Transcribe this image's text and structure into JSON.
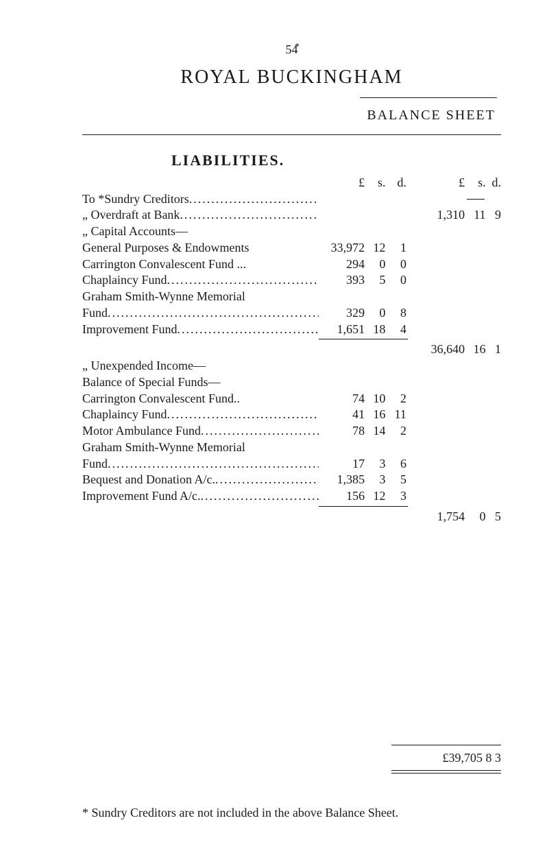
{
  "page": {
    "number": "54",
    "top_mark": "*",
    "title_main": "ROYAL    BUCKINGHAM",
    "subtitle": "BALANCE   SHEET",
    "section_heading": "LIABILITIES.",
    "header_left_L": "£",
    "header_left_s": "s.",
    "header_left_d": "d.",
    "header_right_L": "£",
    "header_right_s": "s.",
    "header_right_d": "d.",
    "footnote": "* Sundry Creditors are not included in the above Balance Sheet.",
    "grand_total": "£39,705  8   3"
  },
  "lines": {
    "sundry_creditors": "To *Sundry Creditors",
    "overdraft": "„  Overdraft at Bank",
    "overdraft_amt_L": "1,310",
    "overdraft_amt_s": "11",
    "overdraft_amt_d": "9",
    "capital_accounts": "„  Capital Accounts—",
    "gp": "General Purposes & Endowments",
    "gp_L": "33,972",
    "gp_s": "12",
    "gp_d": "1",
    "ccf": "Carrington Convalescent Fund ...",
    "ccf_L": "294",
    "ccf_s": "0",
    "ccf_d": "0",
    "chap": "Chaplaincy Fund",
    "chap_L": "393",
    "chap_s": "5",
    "chap_d": "0",
    "gsw1": "Graham   Smith-Wynne   Memorial",
    "gsw2": "Fund",
    "gsw_L": "329",
    "gsw_s": "0",
    "gsw_d": "8",
    "imp": "Improvement Fund",
    "imp_L": "1,651",
    "imp_s": "18",
    "imp_d": "4",
    "cap_total_L": "36,640",
    "cap_total_s": "16",
    "cap_total_d": "1",
    "unexp": "„  Unexpended Income—",
    "bal_special": "Balance of Special Funds—",
    "ccf2": "Carrington Convalescent Fund..",
    "ccf2_L": "74",
    "ccf2_s": "10",
    "ccf2_d": "2",
    "chap2": "Chaplaincy Fund",
    "chap2_L": "41",
    "chap2_s": "16",
    "chap2_d": "11",
    "motor": "Motor Ambulance Fund",
    "motor_L": "78",
    "motor_s": "14",
    "motor_d": "2",
    "gsw3": "Graham Smith-Wynne Memorial",
    "gsw4": "Fund",
    "gsw4_L": "17",
    "gsw4_s": "3",
    "gsw4_d": "6",
    "beq": "Bequest and Donation A/c.",
    "beq_L": "1,385",
    "beq_s": "3",
    "beq_d": "5",
    "imp2": "Improvement Fund A/c.",
    "imp2_L": "156",
    "imp2_s": "12",
    "imp2_d": "3",
    "unexp_total_L": "1,754",
    "unexp_total_s": "0",
    "unexp_total_d": "5"
  }
}
